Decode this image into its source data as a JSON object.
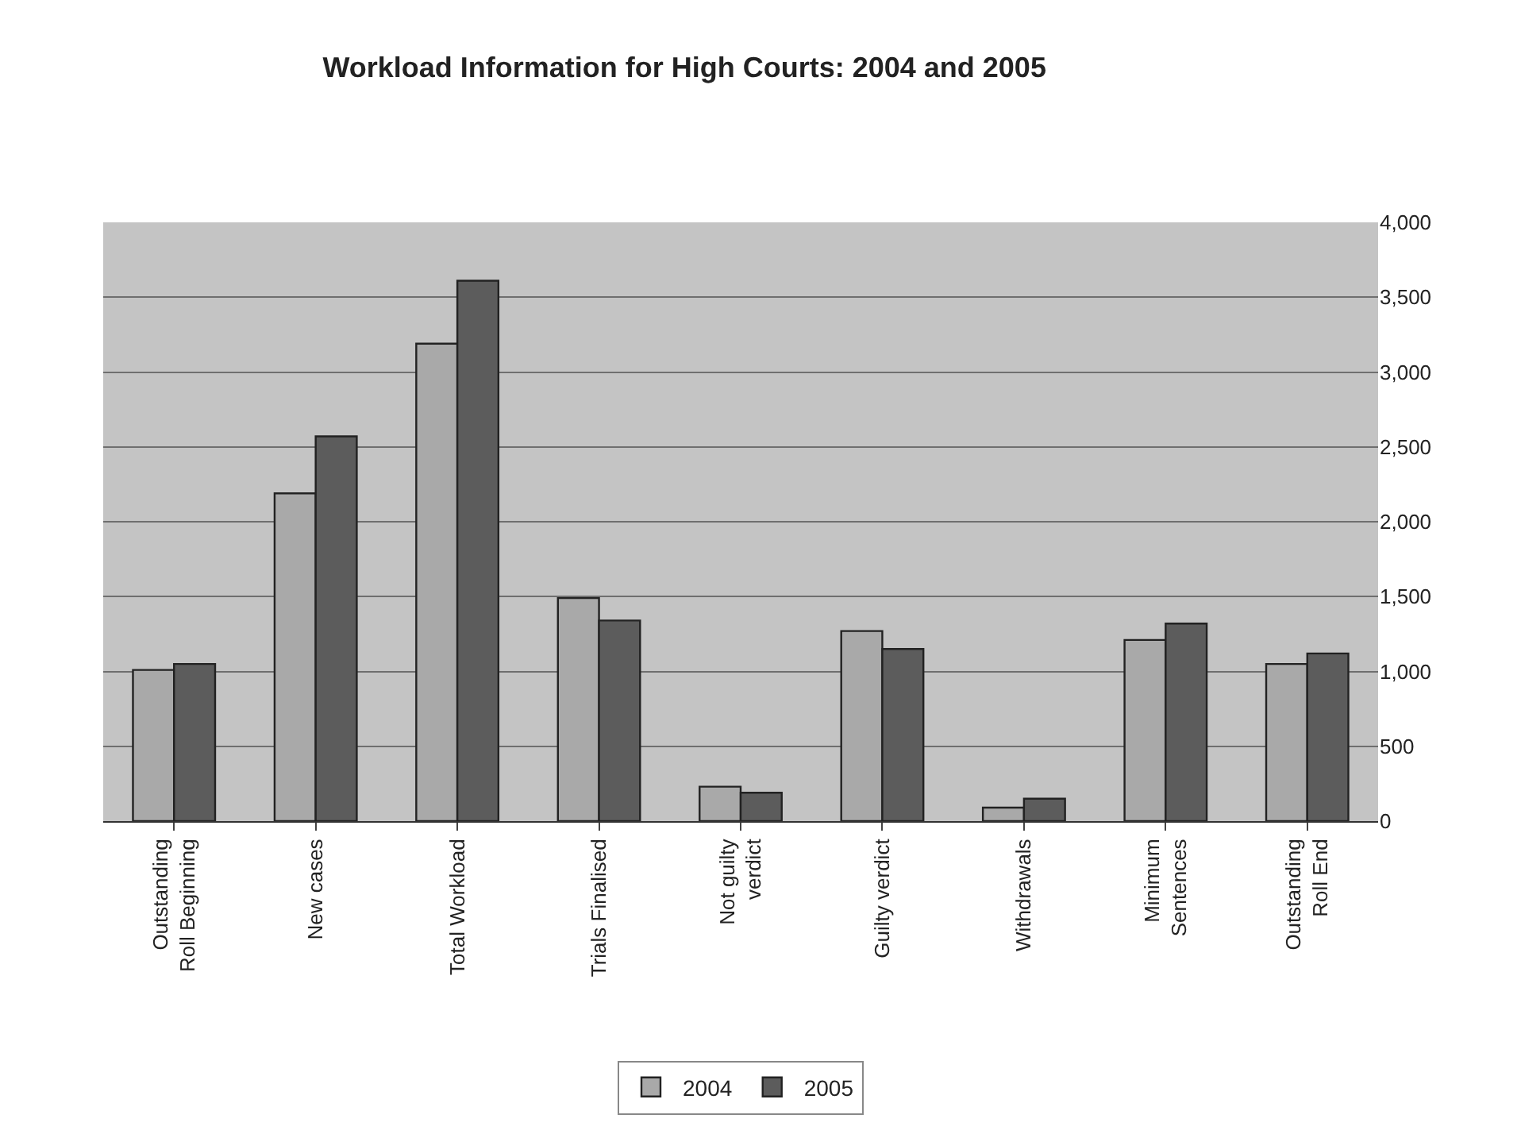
{
  "chart_data": {
    "type": "bar",
    "title": "Workload Information for High Courts: 2004 and 2005",
    "categories": [
      "Outstanding Roll Beginning",
      "New cases",
      "Total Workload",
      "Trials Finalised",
      "Not guilty verdict",
      "Guilty verdict",
      "Withdrawals",
      "Minimum Sentences",
      "Outstanding Roll End"
    ],
    "series": [
      {
        "name": "2004",
        "color": "#a9a9a9",
        "values": [
          1010,
          2190,
          3190,
          1490,
          230,
          1270,
          90,
          1210,
          1050
        ]
      },
      {
        "name": "2005",
        "color": "#5c5c5c",
        "values": [
          1050,
          2570,
          3610,
          1340,
          190,
          1150,
          150,
          1320,
          1120
        ]
      }
    ],
    "ylim": [
      0,
      4000
    ],
    "yticks": [
      {
        "value": 0,
        "label": "0"
      },
      {
        "value": 500,
        "label": "500"
      },
      {
        "value": 1000,
        "label": "1,000"
      },
      {
        "value": 1500,
        "label": "1,500"
      },
      {
        "value": 2000,
        "label": "2,000"
      },
      {
        "value": 2500,
        "label": "2,500"
      },
      {
        "value": 3000,
        "label": "3,000"
      },
      {
        "value": 3500,
        "label": "3,500"
      },
      {
        "value": 4000,
        "label": "4,000"
      }
    ],
    "grid": "y",
    "legend": "bottom"
  }
}
